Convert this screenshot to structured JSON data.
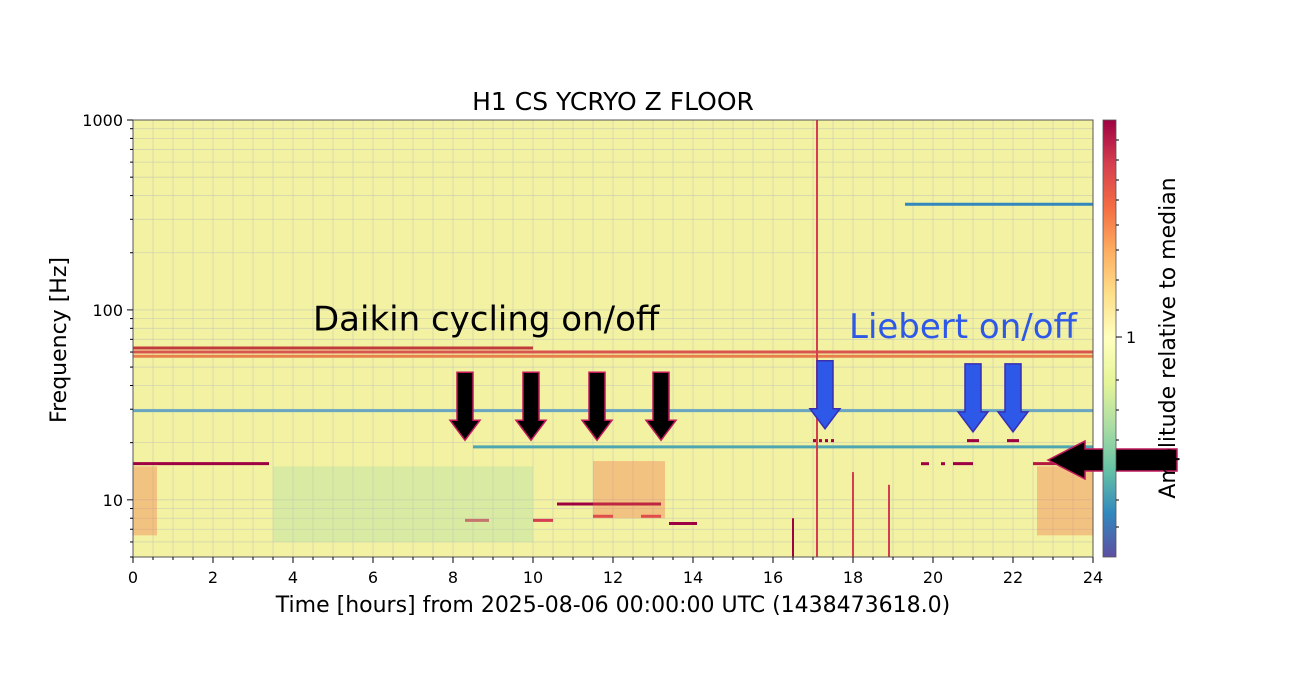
{
  "chart_data": {
    "type": "heatmap",
    "title": "H1 CS YCRYO Z FLOOR",
    "xlabel": "Time [hours] from 2025-08-06 00:00:00 UTC (1438473618.0)",
    "ylabel": "Frequency [Hz]",
    "x_ticks": [
      "0",
      "2",
      "4",
      "6",
      "8",
      "10",
      "12",
      "14",
      "16",
      "18",
      "20",
      "22",
      "24"
    ],
    "xlim": [
      0,
      24
    ],
    "y_scale": "log",
    "ylim": [
      5,
      1000
    ],
    "y_ticks": [
      "10",
      "100",
      "1000"
    ],
    "grid": true,
    "colorbar": {
      "label": "Amplitude relative to median",
      "tick": "1",
      "colormap": "Spectral_r",
      "colors": [
        "#5e4fa2",
        "#3288bd",
        "#66c2a5",
        "#abdda4",
        "#e6f598",
        "#ffffbf",
        "#fee08b",
        "#fdae61",
        "#f46d43",
        "#d53e4f",
        "#9e0142"
      ]
    },
    "background_color": "#f2f2a2",
    "features": [
      {
        "kind": "line",
        "f": 15.5,
        "t0": 0.0,
        "t1": 3.4,
        "color": "#9e0142"
      },
      {
        "kind": "line",
        "f": 15.5,
        "t0": 22.5,
        "t1": 24.0,
        "color": "#b5173f"
      },
      {
        "kind": "line",
        "f": 29.5,
        "t0": 0.0,
        "t1": 24.0,
        "color": "#6aa6c0"
      },
      {
        "kind": "line",
        "f": 19.0,
        "t0": 8.5,
        "t1": 24.0,
        "color": "#4fa6b0"
      },
      {
        "kind": "line",
        "f": 360.0,
        "t0": 19.3,
        "t1": 24.0,
        "color": "#3288bd"
      },
      {
        "kind": "line",
        "f": 60.0,
        "t0": 0.0,
        "t1": 24.0,
        "color": "#d9534f"
      },
      {
        "kind": "line",
        "f": 63.0,
        "t0": 0.0,
        "t1": 10.0,
        "color": "#c23b3b"
      },
      {
        "kind": "line",
        "f": 57.0,
        "t0": 0.0,
        "t1": 24.0,
        "color": "#e8804e"
      },
      {
        "kind": "line",
        "f": 9.5,
        "t0": 10.6,
        "t1": 13.2,
        "color": "#9e0142"
      },
      {
        "kind": "line",
        "f": 7.5,
        "t0": 13.4,
        "t1": 14.1,
        "color": "#9e0142"
      },
      {
        "kind": "line",
        "f": 7.8,
        "t0": 8.3,
        "t1": 8.9,
        "color": "#d53e4f"
      },
      {
        "kind": "line",
        "f": 7.8,
        "t0": 10.0,
        "t1": 10.5,
        "color": "#d53e4f"
      },
      {
        "kind": "line",
        "f": 8.2,
        "t0": 11.5,
        "t1": 12.0,
        "color": "#d53e4f"
      },
      {
        "kind": "line",
        "f": 8.2,
        "t0": 12.7,
        "t1": 13.2,
        "color": "#d53e4f"
      },
      {
        "kind": "vline",
        "t": 17.1,
        "f0": 5,
        "f1": 1000,
        "color": "#d53e4f"
      },
      {
        "kind": "vline",
        "t": 16.5,
        "f0": 5,
        "f1": 8,
        "color": "#9e0142"
      },
      {
        "kind": "vline",
        "t": 18.0,
        "f0": 5,
        "f1": 14,
        "color": "#d53e4f"
      },
      {
        "kind": "vline",
        "t": 18.9,
        "f0": 5,
        "f1": 12,
        "color": "#d53e4f"
      },
      {
        "kind": "line",
        "f": 15.5,
        "t0": 19.7,
        "t1": 19.9,
        "color": "#9e0142"
      },
      {
        "kind": "line",
        "f": 15.5,
        "t0": 20.2,
        "t1": 20.3,
        "color": "#9e0142"
      },
      {
        "kind": "line",
        "f": 15.5,
        "t0": 20.5,
        "t1": 21.0,
        "color": "#9e0142"
      },
      {
        "kind": "region",
        "t0": 0.0,
        "t1": 0.6,
        "f0": 6.5,
        "f1": 15,
        "color": "#f46d43",
        "opacity": 0.35
      },
      {
        "kind": "region",
        "t0": 11.5,
        "t1": 13.3,
        "f0": 8,
        "f1": 16,
        "color": "#f46d43",
        "opacity": 0.35
      },
      {
        "kind": "region",
        "t0": 22.6,
        "t1": 24.0,
        "f0": 6.5,
        "f1": 15,
        "color": "#f46d43",
        "opacity": 0.35
      },
      {
        "kind": "region",
        "t0": 3.5,
        "t1": 10.0,
        "f0": 6,
        "f1": 15,
        "color": "#abdda4",
        "opacity": 0.35
      }
    ],
    "annotations": [
      {
        "text": "Daikin cycling on/off",
        "t": 4.5,
        "f": 78,
        "color": "#000000"
      },
      {
        "text": "Liebert on/off",
        "t": 17.9,
        "f": 71,
        "color": "#2d58e8"
      }
    ],
    "arrows": [
      {
        "t": 8.3,
        "f": 47,
        "color": "#000000",
        "outline": "#c2185b"
      },
      {
        "t": 9.95,
        "f": 47,
        "color": "#000000",
        "outline": "#c2185b"
      },
      {
        "t": 11.6,
        "f": 47,
        "color": "#000000",
        "outline": "#c2185b"
      },
      {
        "t": 13.2,
        "f": 47,
        "color": "#000000",
        "outline": "#c2185b"
      },
      {
        "t": 17.3,
        "f": 54,
        "color": "#2d58e8",
        "outline": "#3a2db0"
      },
      {
        "t": 21.0,
        "f": 52,
        "color": "#2d58e8",
        "outline": "#3a2db0"
      },
      {
        "t": 22.0,
        "f": 52,
        "color": "#2d58e8",
        "outline": "#3a2db0"
      }
    ],
    "left_arrow": {
      "f": 16.2,
      "color": "#000000",
      "outline": "#c2185b"
    },
    "markers": [
      {
        "t0": 17.0,
        "t1": 17.6,
        "f": 20.5,
        "dotted": true,
        "color": "#9e0142"
      },
      {
        "t0": 20.85,
        "t1": 21.15,
        "f": 20.5,
        "dotted": false,
        "color": "#9e0142"
      },
      {
        "t0": 21.85,
        "t1": 22.15,
        "f": 20.5,
        "dotted": false,
        "color": "#9e0142"
      }
    ]
  }
}
